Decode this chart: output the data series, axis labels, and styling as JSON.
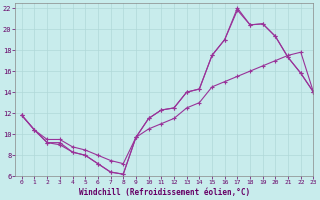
{
  "bg_color": "#c8ecec",
  "grid_color": "#b0d8d8",
  "line_color": "#993399",
  "xlabel": "Windchill (Refroidissement éolien,°C)",
  "xlim": [
    -0.5,
    23
  ],
  "ylim": [
    6,
    22.5
  ],
  "xticks": [
    0,
    1,
    2,
    3,
    4,
    5,
    6,
    7,
    8,
    9,
    10,
    11,
    12,
    13,
    14,
    15,
    16,
    17,
    18,
    19,
    20,
    21,
    22,
    23
  ],
  "yticks": [
    6,
    8,
    10,
    12,
    14,
    16,
    18,
    20,
    22
  ],
  "lines": [
    {
      "x": [
        0,
        1,
        2,
        3,
        4,
        5,
        6,
        7,
        8,
        9,
        10,
        11,
        12,
        13,
        14,
        15,
        16,
        17,
        18,
        19,
        20,
        21,
        22,
        23
      ],
      "y": [
        11.8,
        10.4,
        9.2,
        9.2,
        8.3,
        8.0,
        7.2,
        6.4,
        6.2,
        9.7,
        11.5,
        12.3,
        12.5,
        14.0,
        14.3,
        17.5,
        19.0,
        21.8,
        20.4,
        20.5,
        19.3,
        17.3,
        15.8,
        14.0
      ]
    },
    {
      "x": [
        0,
        1,
        2,
        3,
        4,
        5,
        6,
        7,
        8,
        9,
        10,
        11,
        12,
        13,
        14,
        15,
        16,
        17,
        18,
        19,
        20,
        21,
        22,
        23
      ],
      "y": [
        11.8,
        10.4,
        9.2,
        9.0,
        8.3,
        8.0,
        7.2,
        6.4,
        6.2,
        9.7,
        11.5,
        12.3,
        12.5,
        14.0,
        14.3,
        17.5,
        19.0,
        22.0,
        20.4,
        20.5,
        19.3,
        17.3,
        15.8,
        14.0
      ]
    },
    {
      "x": [
        0,
        1,
        2,
        3,
        4,
        5,
        6,
        7,
        8,
        9,
        10,
        11,
        12,
        13,
        14,
        15,
        16,
        17,
        18,
        19,
        20,
        21,
        22,
        23
      ],
      "y": [
        11.8,
        10.4,
        9.5,
        9.5,
        8.8,
        8.5,
        8.0,
        7.5,
        7.2,
        9.7,
        10.5,
        11.0,
        11.5,
        12.5,
        13.0,
        14.5,
        15.0,
        15.5,
        16.0,
        16.5,
        17.0,
        17.5,
        17.8,
        14.0
      ]
    }
  ]
}
